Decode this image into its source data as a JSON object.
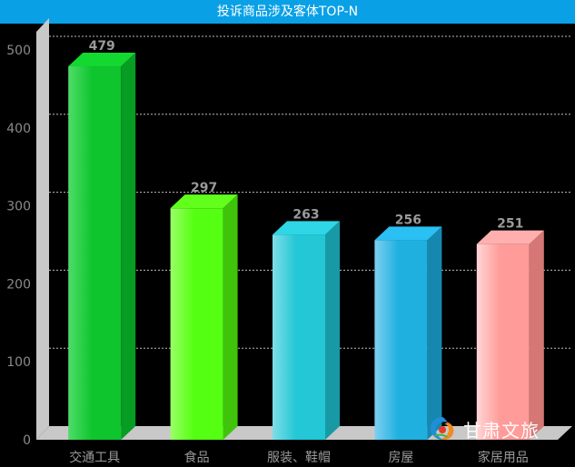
{
  "chart_data": {
    "type": "bar",
    "title": "投诉商品涉及客体TOP-N",
    "categories": [
      "交通工具",
      "食品",
      "服装、鞋帽",
      "房屋",
      "家居用品"
    ],
    "values": [
      479,
      297,
      263,
      256,
      251
    ],
    "ylim": [
      0,
      500
    ],
    "yticks": [
      0,
      100,
      200,
      300,
      400,
      500
    ],
    "grid": true,
    "bar_colors": [
      {
        "light": "#4fdc6a",
        "front": "#0fc52e",
        "side": "#079c22",
        "top": "#12d830"
      },
      {
        "light": "#9bff66",
        "front": "#55ff12",
        "side": "#3fc40b",
        "top": "#62ff1c"
      },
      {
        "light": "#7fdde8",
        "front": "#23c7d6",
        "side": "#189aa6",
        "top": "#2ed6e6"
      },
      {
        "light": "#7ed0f0",
        "front": "#1fb0e0",
        "side": "#1688b0",
        "top": "#2bc0f4"
      },
      {
        "light": "#ffd6d6",
        "front": "#ff9b98",
        "side": "#d57774",
        "top": "#ffb0ae"
      }
    ]
  },
  "watermark": {
    "text": "甘肃文旅",
    "icon": "gansu-wenlv-logo-icon"
  }
}
